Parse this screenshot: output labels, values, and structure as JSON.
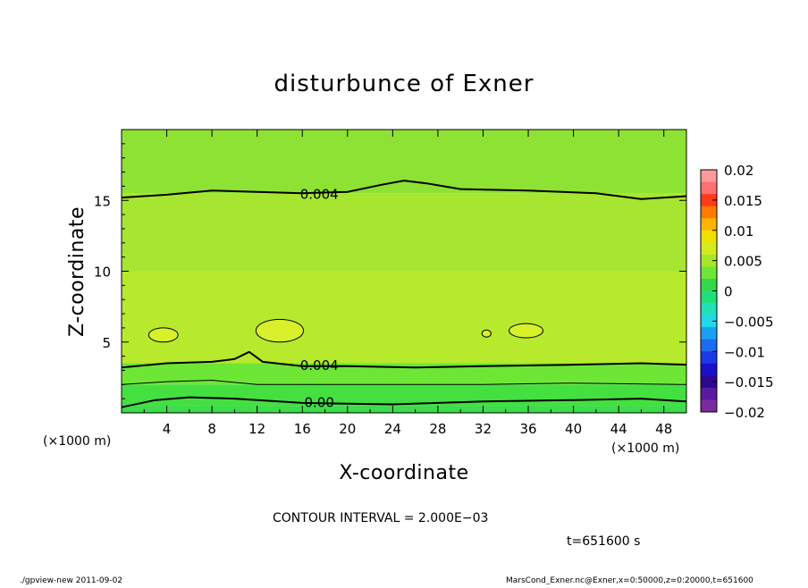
{
  "chart_data": {
    "type": "heatmap",
    "title": "disturbunce of Exner",
    "xlabel": "X-coordinate",
    "ylabel": "Z-coordinate",
    "x_unit": "(×1000 m)",
    "xlim": [
      0,
      50
    ],
    "ylim": [
      0,
      20
    ],
    "x_ticks": [
      4,
      8,
      12,
      16,
      20,
      24,
      28,
      32,
      36,
      40,
      44,
      48
    ],
    "y_ticks": [
      5,
      10,
      15
    ],
    "bands": [
      {
        "z_from": 0.0,
        "z_to": 0.5,
        "value_range": [
          -0.001,
          0.0
        ],
        "color": "#3ddc4a"
      },
      {
        "z_from": 0.5,
        "z_to": 2.0,
        "value_range": [
          0.0,
          0.002
        ],
        "color": "#44e040"
      },
      {
        "z_from": 2.0,
        "z_to": 3.5,
        "value_range": [
          0.002,
          0.004
        ],
        "color": "#6ee636"
      },
      {
        "z_from": 3.5,
        "z_to": 10.0,
        "value_range": [
          0.004,
          0.006
        ],
        "color": "#b7ea2c"
      },
      {
        "z_from": 10.0,
        "z_to": 15.5,
        "value_range": [
          0.002,
          0.004
        ],
        "color": "#a6e630"
      },
      {
        "z_from": 15.5,
        "z_to": 20.0,
        "value_range": [
          0.002,
          0.004
        ],
        "color": "#8de234"
      }
    ],
    "contour_labels": [
      {
        "text": "0.004",
        "x": 17.5,
        "z": 15.5
      },
      {
        "text": "0.004",
        "x": 17.5,
        "z": 3.4
      },
      {
        "text": "0.00",
        "x": 17.5,
        "z": 0.8
      }
    ],
    "colorbar": {
      "ticks": [
        "0.02",
        "0.015",
        "0.01",
        "0.005",
        "0",
        "−0.005",
        "−0.01",
        "−0.015",
        "−0.02"
      ],
      "colors": [
        "#ff9a9a",
        "#ff7070",
        "#ff3a1a",
        "#ff7a00",
        "#ffb400",
        "#f0e000",
        "#d2ec1e",
        "#a8e62a",
        "#6ee636",
        "#34d84a",
        "#1ee07a",
        "#22e0b8",
        "#22d8e8",
        "#1aa0f0",
        "#1a6cf0",
        "#1a38e8",
        "#1a10c8",
        "#2a0890",
        "#5a1aa0",
        "#7a2aa0"
      ]
    }
  },
  "footer": {
    "contour_interval": "CONTOUR INTERVAL = 2.000E−03",
    "time": "t=651600 s",
    "left_note": "./gpview-new   2011-09-02",
    "right_note": "MarsCond_Exner.nc@Exner,x=0:50000,z=0:20000,t=651600"
  }
}
